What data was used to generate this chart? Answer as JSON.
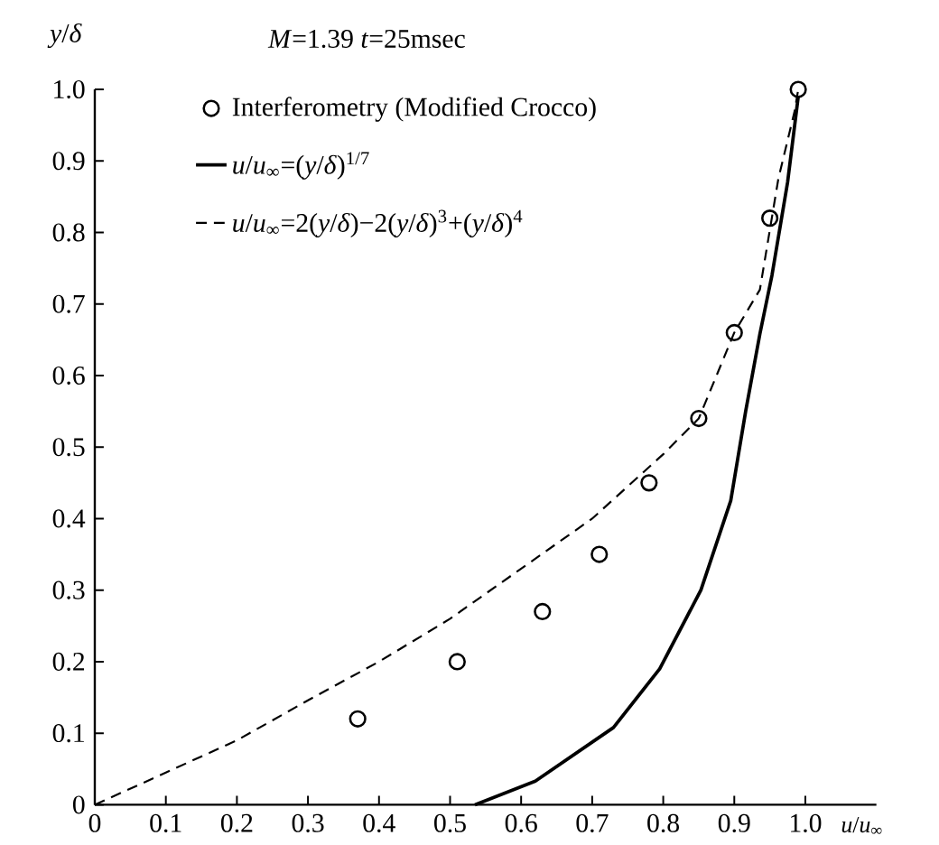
{
  "chart_data": {
    "type": "scatter",
    "title": "*M*=1.39   *t*=25msec",
    "xlabel": "*u*/*u*$_{∞}$",
    "ylabel": "*y*/*δ*",
    "xlim": [
      0,
      1.1
    ],
    "ylim": [
      0,
      1.0
    ],
    "xticks": [
      0,
      0.1,
      0.2,
      0.3,
      0.4,
      0.5,
      0.6,
      0.7,
      0.8,
      0.9,
      {
        "value": 1.0,
        "label": "1.0"
      }
    ],
    "yticks": [
      0,
      0.1,
      0.2,
      0.3,
      0.4,
      0.5,
      0.6,
      0.7,
      0.8,
      0.9,
      {
        "value": 1.0,
        "label": "1.0"
      }
    ],
    "grid": false,
    "legend": "top left",
    "series": [
      {
        "name": "Interferometry (Modified Crocco)",
        "type": "scatter",
        "marker": "circle",
        "color": "#000000",
        "x": [
          0.37,
          0.51,
          0.63,
          0.71,
          0.78,
          0.85,
          0.9,
          0.95,
          0.99
        ],
        "values": [
          0.12,
          0.2,
          0.27,
          0.35,
          0.45,
          0.54,
          0.66,
          0.82,
          1.0
        ]
      },
      {
        "name": "*u*/*u*$_{∞}$=(*y*/*δ*)$^{1/7}$",
        "type": "line",
        "marker": "none",
        "line_style": "solid",
        "color": "#000000",
        "x": [
          0.535,
          0.62,
          0.73,
          0.795,
          0.853,
          0.895,
          0.916,
          0.936,
          0.953,
          0.975,
          0.99
        ],
        "values": [
          0,
          0.033,
          0.108,
          0.19,
          0.3,
          0.425,
          0.55,
          0.658,
          0.74,
          0.87,
          0.99
        ]
      },
      {
        "name": "*u*/*u*$_{∞}$=2(*y*/*δ*)−2(*y*/*δ*)$^{3}$+(*y*/*δ*)$^{4}$",
        "type": "line",
        "marker": "none",
        "line_style": "dashed",
        "color": "#000000",
        "x": [
          0,
          0.1,
          0.2,
          0.3,
          0.4,
          0.5,
          0.6,
          0.7,
          0.8,
          0.85,
          0.9,
          0.936,
          0.962,
          0.985,
          0.99
        ],
        "values": [
          0,
          0.045,
          0.09,
          0.146,
          0.2,
          0.26,
          0.33,
          0.4,
          0.49,
          0.54,
          0.66,
          0.72,
          0.875,
          0.97,
          1.0
        ]
      }
    ]
  }
}
